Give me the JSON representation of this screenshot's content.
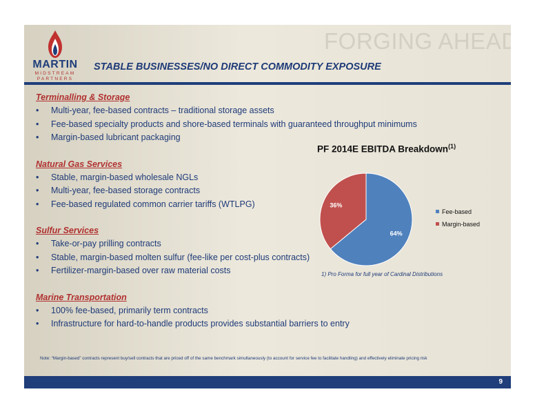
{
  "watermark": "FORGING AHEAD",
  "logo": {
    "name": "MARTIN",
    "line1": "MIDSTREAM",
    "line2": "PARTNERS"
  },
  "headline": "STABLE BUSINESSES/NO DIRECT COMMODITY EXPOSURE",
  "sections": [
    {
      "title": "Terminalling & Storage",
      "bullets": [
        "Multi-year, fee-based contracts – traditional storage assets",
        "Fee-based specialty products and shore-based terminals with guaranteed throughput minimums",
        "Margin-based lubricant packaging"
      ]
    },
    {
      "title": "Natural Gas Services",
      "bullets": [
        "Stable, margin-based wholesale NGLs",
        "Multi-year, fee-based storage contracts",
        "Fee-based regulated common carrier tariffs (WTLPG)"
      ]
    },
    {
      "title": "Sulfur Services",
      "bullets": [
        "Take-or-pay prilling contracts",
        "Stable, margin-based molten sulfur (fee-like per cost-plus contracts)",
        "Fertilizer-margin-based over raw material costs"
      ]
    },
    {
      "title": "Marine Transportation",
      "bullets": [
        "100% fee-based, primarily term contracts",
        "Infrastructure for hard-to-handle products provides substantial barriers to entry"
      ]
    }
  ],
  "chart_data": {
    "type": "pie",
    "title": "PF 2014E EBITDA Breakdown",
    "title_superscript": "(1)",
    "categories": [
      "Fee-based",
      "Margin-based"
    ],
    "values": [
      64,
      36
    ],
    "data_labels": [
      "64%",
      "36%"
    ],
    "colors": [
      "#4f81bd",
      "#c0504d"
    ],
    "legend_position": "right"
  },
  "footnote": "1) Pro Forma for full year of Cardinal Distributions",
  "note": "Note: “Margin-based” contracts represent buy/sell contracts that are priced off of the same benchmark simultaneously (to account for service fee to facilitate handling) and effectively eliminate pricing risk",
  "page_number": "9",
  "bullet_glyph": "•"
}
